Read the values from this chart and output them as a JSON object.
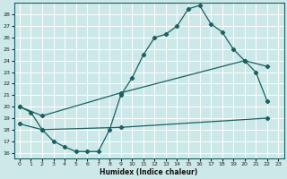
{
  "xlabel": "Humidex (Indice chaleur)",
  "ylabel": "",
  "bg_color": "#cde8e8",
  "grid_color": "#b0d4d4",
  "line_color": "#1a6060",
  "xlim": [
    -0.5,
    23.5
  ],
  "ylim": [
    15.5,
    29.0
  ],
  "xticks": [
    0,
    1,
    2,
    3,
    4,
    5,
    6,
    7,
    8,
    9,
    10,
    11,
    12,
    13,
    14,
    15,
    16,
    17,
    18,
    19,
    20,
    21,
    22,
    23
  ],
  "yticks": [
    16,
    17,
    18,
    19,
    20,
    21,
    22,
    23,
    24,
    25,
    26,
    27,
    28
  ],
  "line1_x": [
    0,
    1,
    2,
    3,
    4,
    5,
    6,
    7,
    8,
    9,
    10,
    11,
    12,
    13,
    14,
    15,
    16,
    17,
    18,
    19,
    20,
    21,
    22
  ],
  "line1_y": [
    20.0,
    19.5,
    18.0,
    17.0,
    16.5,
    16.1,
    16.1,
    16.1,
    18.0,
    21.0,
    22.5,
    24.5,
    26.0,
    26.3,
    27.0,
    28.5,
    28.8,
    27.2,
    26.5,
    25.0,
    24.0,
    23.0,
    20.5
  ],
  "line2_x": [
    0,
    2,
    9,
    20,
    22
  ],
  "line2_y": [
    20.0,
    19.2,
    21.2,
    24.0,
    23.5
  ],
  "line3_x": [
    0,
    2,
    9,
    22
  ],
  "line3_y": [
    18.5,
    18.0,
    18.2,
    19.0
  ]
}
